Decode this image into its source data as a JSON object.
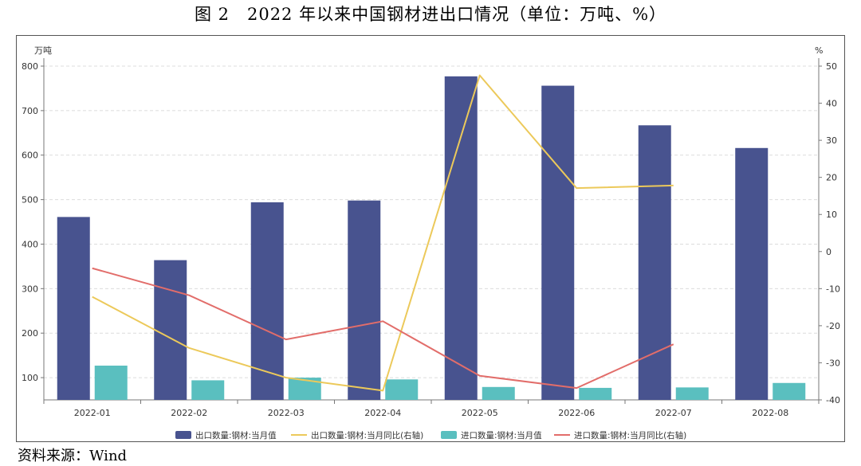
{
  "figure_title": "图 2　2022 年以来中国钢材进出口情况（单位：万吨、%）",
  "source_note": "资料来源：Wind",
  "colors": {
    "export_bar": "#48538f",
    "import_bar": "#5abfbf",
    "export_yoy": "#ecc95a",
    "import_yoy": "#e26d6a"
  },
  "chart_data": {
    "type": "bar",
    "categories": [
      "2022-01",
      "2022-02",
      "2022-03",
      "2022-04",
      "2022-05",
      "2022-06",
      "2022-07",
      "2022-08"
    ],
    "left_unit": "万吨",
    "right_unit": "%",
    "left_ylim": [
      50,
      800
    ],
    "left_ticks": [
      100,
      200,
      300,
      400,
      500,
      600,
      700,
      800
    ],
    "right_ylim": [
      -40,
      50
    ],
    "right_ticks": [
      -40,
      -30,
      -20,
      -10,
      0,
      10,
      20,
      30,
      40,
      50
    ],
    "series": [
      {
        "name": "出口数量:钢材:当月值",
        "kind": "bar",
        "axis": "left",
        "values": [
          461,
          364,
          494,
          498,
          777,
          756,
          667,
          616
        ]
      },
      {
        "name": "出口数量:钢材:当月同比(右轴)",
        "kind": "line",
        "axis": "right",
        "values": [
          -12.2,
          -26.0,
          -34.0,
          -37.5,
          47.5,
          17.1,
          17.8,
          null
        ]
      },
      {
        "name": "进口数量:钢材:当月值",
        "kind": "bar",
        "axis": "left",
        "values": [
          127,
          94,
          100,
          96,
          79,
          77,
          78,
          88
        ]
      },
      {
        "name": "进口数量:钢材:当月同比(右轴)",
        "kind": "line",
        "axis": "right",
        "values": [
          -4.5,
          -11.8,
          -23.7,
          -18.8,
          -33.5,
          -36.8,
          -25.0,
          null
        ]
      }
    ],
    "legend_position": "bottom"
  }
}
